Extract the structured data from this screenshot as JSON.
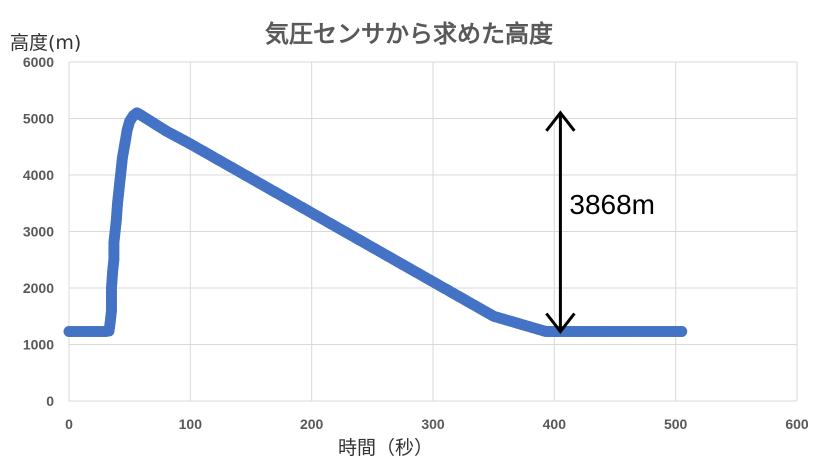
{
  "chart_data": {
    "type": "scatter",
    "title": "気圧センサから求めた高度",
    "xlabel": "時間（秒）",
    "ylabel": "高度(m)",
    "xlim": [
      0,
      600
    ],
    "ylim": [
      0,
      6000
    ],
    "xticks": [
      0,
      100,
      200,
      300,
      400,
      500,
      600
    ],
    "yticks": [
      0,
      1000,
      2000,
      3000,
      4000,
      5000,
      6000
    ],
    "grid": true,
    "series": [
      {
        "color": "#4472C4",
        "points": [
          [
            0,
            1230
          ],
          [
            10,
            1230
          ],
          [
            20,
            1230
          ],
          [
            30,
            1230
          ],
          [
            33,
            1240
          ],
          [
            34,
            1400
          ],
          [
            35,
            1600
          ],
          [
            35,
            2000
          ],
          [
            36,
            2300
          ],
          [
            37,
            2500
          ],
          [
            37,
            2800
          ],
          [
            38,
            3000
          ],
          [
            39,
            3200
          ],
          [
            40,
            3500
          ],
          [
            41,
            3700
          ],
          [
            42,
            3900
          ],
          [
            43,
            4100
          ],
          [
            44,
            4300
          ],
          [
            46,
            4550
          ],
          [
            48,
            4800
          ],
          [
            50,
            4950
          ],
          [
            53,
            5050
          ],
          [
            56,
            5100
          ],
          [
            60,
            5050
          ],
          [
            80,
            4780
          ],
          [
            100,
            4550
          ],
          [
            150,
            3940
          ],
          [
            200,
            3330
          ],
          [
            250,
            2720
          ],
          [
            300,
            2110
          ],
          [
            350,
            1500
          ],
          [
            393,
            1230
          ],
          [
            400,
            1230
          ],
          [
            450,
            1230
          ],
          [
            505,
            1230
          ]
        ]
      }
    ],
    "annotations": [
      {
        "text": "3868m",
        "type": "double-arrow",
        "x": 405,
        "y_from": 1230,
        "y_to": 5100
      }
    ]
  }
}
